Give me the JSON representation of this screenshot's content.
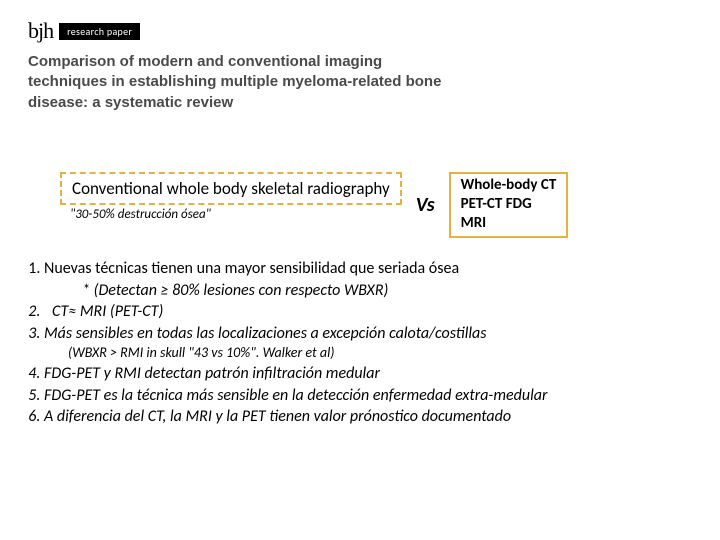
{
  "header": {
    "logo": "bjh",
    "tag": "research paper",
    "title": "Comparison of modern and conventional imaging techniques in establishing multiple myeloma-related bone disease: a systematic review"
  },
  "comparison": {
    "left_label": "Conventional whole body skeletal radiography",
    "left_subnote": "\"30-50% destrucción ósea\"",
    "vs": "Vs",
    "right_line1": "Whole-body CT",
    "right_line2": "PET-CT FDG",
    "right_line3": "MRI"
  },
  "points": {
    "p1": "Nuevas técnicas tienen una mayor sensibilidad que seriada ósea",
    "p1_sub": "* (Detectan ≥ 80% lesiones con respecto WBXR)",
    "p2": " CT≈ MRI (PET-CT)",
    "p3": "Más sensibles en todas las localizaciones a excepción calota/costillas",
    "p3_sub": "(WBXR > RMI in skull \"43 vs 10%\". Walker et al)",
    "p4": "FDG-PET y RMI detectan patrón infiltración medular",
    "p5": "FDG-PET es la técnica más sensible en la detección enfermedad extra-medular",
    "p6": "A diferencia del CT, la MRI y la PET tienen valor prónostico documentado"
  },
  "colors": {
    "box_border": "#e8b040",
    "title_text": "#4a4a4a",
    "body_text": "#000000",
    "background": "#ffffff"
  }
}
